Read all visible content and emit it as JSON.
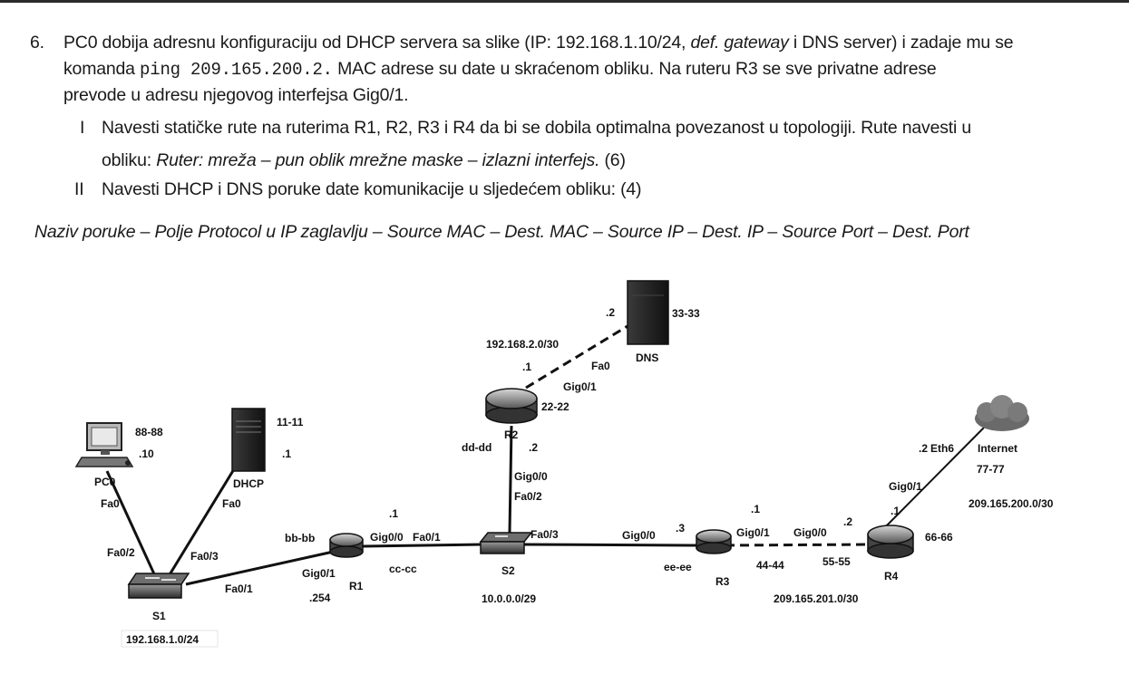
{
  "question": {
    "number": "6.",
    "line1_a": "PC0 dobija adresnu konfiguraciju od DHCP servera sa slike (IP: 192.168.1.10/24, ",
    "line1_em": "def. gateway",
    "line1_b": " i DNS server) i zadaje mu se",
    "line2_a": "komanda ",
    "line2_code": "ping 209.165.200.2.",
    "line2_b": " MAC adrese su date u skraćenom obliku. Na ruteru R3 se sve privatne adrese",
    "line3": "prevode u adresu njegovog interfejsa Gig0/1.",
    "item1_num": "I",
    "item1_line1": "Navesti statičke rute na ruterima R1, R2, R3 i R4 da bi se dobila optimalna povezanost u topologiji. Rute navesti u",
    "item1_line2_a": "obliku: ",
    "item1_line2_em": "Ruter: mreža – pun oblik mrežne maske – izlazni interfejs.",
    "item1_line2_b": " (6)",
    "item2_num": "II",
    "item2_line": "Navesti DHCP i DNS poruke date komunikacije u sljedećem obliku: (4)",
    "format_line": "Naziv poruke – Polje Protocol u IP zaglavlju –  Source MAC – Dest. MAC – Source IP – Dest. IP – Source Port – Dest. Port"
  },
  "topology": {
    "devices": {
      "pc0": "PC0",
      "dhcp": "DHCP",
      "dns": "DNS",
      "s1": "S1",
      "s2": "S2",
      "r1": "R1",
      "r2": "R2",
      "r3": "R3",
      "r4": "R4",
      "internet": "Internet"
    },
    "macs": {
      "pc0": "88-88",
      "dhcp": "11-11",
      "dns": "33-33",
      "r1_g00": "bb-bb",
      "r1_g01": "cc-cc",
      "r2_g01": "22-22",
      "r2_g00": "dd-dd",
      "r3_g00": "ee-ee",
      "r3_g01": "44-44",
      "r4_g00": "55-55",
      "r4_g01": "66-66",
      "internet": "77-77"
    },
    "host_ids": {
      "pc0": ".10",
      "dhcp": ".1",
      "r1_left": ".254",
      "r1_s2": ".1",
      "r2_dns": ".1",
      "dns": ".2",
      "r2_s2": ".2",
      "r3_s2": ".3",
      "r3_r4": ".1",
      "r4_r3": ".2",
      "r4_inet": ".1",
      "inet": ".2"
    },
    "interfaces": {
      "pc0_fa0": "Fa0",
      "s1_fa02": "Fa0/2",
      "dhcp_fa0": "Fa0",
      "s1_fa03": "Fa0/3",
      "s1_fa01": "Fa0/1",
      "r1_g01": "Gig0/1",
      "r1_g00": "Gig0/0",
      "s2_fa01": "Fa0/1",
      "s2_fa02": "Fa0/2",
      "r2_g00": "Gig0/0",
      "r2_g01": "Gig0/1",
      "dns_fa0": "Fa0",
      "s2_fa03": "Fa0/3",
      "r3_g00": "Gig0/0",
      "r3_g01": "Gig0/1",
      "r4_g00": "Gig0/0",
      "r4_g01": "Gig0/1",
      "inet_eth6": "Eth6"
    },
    "networks": {
      "lan1": "192.168.1.0/24",
      "lan2": "192.168.2.0/30",
      "s2_net": "10.0.0.0/29",
      "r3r4": "209.165.201.0/30",
      "inet_net": "209.165.200.0/30"
    }
  }
}
